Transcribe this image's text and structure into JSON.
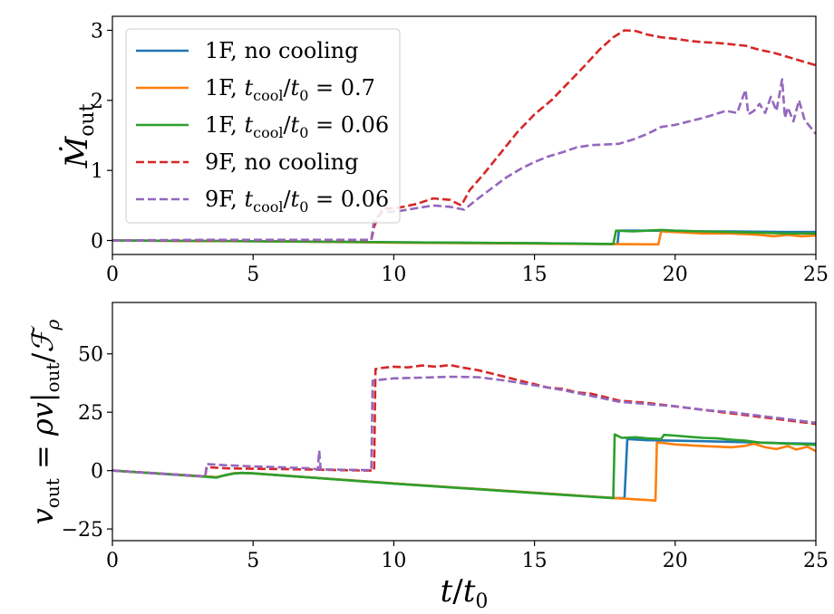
{
  "chart_data": [
    {
      "type": "line",
      "panel": "top",
      "ylabel": "Ṁ",
      "ylabel_sub": "out",
      "xlim": [
        0,
        25
      ],
      "ylim": [
        -0.2,
        3.2
      ],
      "xticks": [
        "0",
        "5",
        "10",
        "15",
        "20",
        "25"
      ],
      "xtick_values": [
        0,
        5,
        10,
        15,
        20,
        25
      ],
      "yticks": [
        "0",
        "1",
        "2",
        "3"
      ],
      "ytick_values": [
        0,
        1,
        2,
        3
      ],
      "legend": {
        "placement": "top-left",
        "entries": [
          {
            "pre": "1F, no cooling",
            "math": false
          },
          {
            "pre": "1F, ",
            "math": true,
            "value": "0.7"
          },
          {
            "pre": "1F, ",
            "math": true,
            "value": "0.06"
          },
          {
            "pre": "9F, no cooling",
            "math": false
          },
          {
            "pre": "9F, ",
            "math": true,
            "value": "0.06"
          }
        ]
      },
      "series": [
        {
          "name": "1F, no cooling",
          "color": "#1f77b4",
          "dash": false,
          "x": [
            0,
            5,
            10,
            15,
            17.8,
            17.95,
            18.0,
            19.4,
            19.5,
            20,
            22,
            24,
            25
          ],
          "y": [
            0,
            -0.01,
            -0.025,
            -0.04,
            -0.05,
            -0.05,
            0.14,
            0.14,
            0.14,
            0.13,
            0.13,
            0.12,
            0.12
          ]
        },
        {
          "name": "1F, t_cool/t0 = 0.7",
          "color": "#ff7f0e",
          "dash": false,
          "x": [
            0,
            5,
            10,
            15,
            19.3,
            19.4,
            19.5,
            20,
            21,
            22,
            23,
            23.5,
            24,
            24.5,
            25
          ],
          "y": [
            0,
            -0.01,
            -0.03,
            -0.045,
            -0.055,
            -0.055,
            0.13,
            0.12,
            0.1,
            0.1,
            0.08,
            0.06,
            0.08,
            0.06,
            0.07
          ]
        },
        {
          "name": "1F, t_cool/t0 = 0.06",
          "color": "#2ca02c",
          "dash": false,
          "x": [
            0,
            5,
            10,
            15,
            17.8,
            17.9,
            18.5,
            19.0,
            19.5,
            20,
            21,
            22,
            23,
            24,
            25
          ],
          "y": [
            0,
            -0.01,
            -0.025,
            -0.04,
            -0.05,
            0.14,
            0.13,
            0.14,
            0.15,
            0.14,
            0.13,
            0.12,
            0.11,
            0.1,
            0.1
          ]
        },
        {
          "name": "9F, no cooling",
          "color": "#d62728",
          "dash": true,
          "x": [
            0,
            3.3,
            5,
            7,
            9.2,
            9.3,
            9.6,
            10.2,
            10.8,
            11.4,
            12.0,
            12.4,
            12.7,
            13.2,
            13.8,
            14.4,
            15.0,
            15.6,
            16.2,
            16.8,
            17.3,
            17.8,
            18.2,
            18.6,
            19.0,
            19.5,
            20.0,
            20.5,
            21.0,
            21.5,
            22.0,
            22.5,
            23.0,
            23.5,
            24.0,
            24.5,
            25.0
          ],
          "y": [
            0,
            0,
            0.005,
            0.005,
            0.005,
            0.2,
            0.45,
            0.47,
            0.52,
            0.6,
            0.58,
            0.5,
            0.72,
            0.95,
            1.25,
            1.55,
            1.8,
            2.0,
            2.25,
            2.5,
            2.72,
            2.9,
            3.0,
            2.99,
            2.94,
            2.9,
            2.88,
            2.85,
            2.83,
            2.82,
            2.8,
            2.78,
            2.72,
            2.68,
            2.62,
            2.56,
            2.5
          ]
        },
        {
          "name": "9F, t_cool/t0 = 0.06",
          "color": "#9467bd",
          "dash": true,
          "x": [
            0,
            3.3,
            5,
            7,
            9.2,
            9.3,
            9.6,
            10.2,
            10.8,
            11.4,
            12.0,
            12.5,
            13.0,
            13.5,
            14.0,
            14.5,
            15.0,
            15.5,
            16.0,
            16.5,
            17.0,
            17.5,
            18.0,
            18.5,
            19.0,
            19.5,
            20.0,
            20.5,
            21.0,
            21.4,
            21.8,
            22.2,
            22.5,
            22.6,
            22.8,
            23.0,
            23.2,
            23.4,
            23.6,
            23.8,
            23.9,
            24.0,
            24.2,
            24.4,
            24.6,
            24.8,
            25.0
          ],
          "y": [
            0,
            0.01,
            0.01,
            0.01,
            0.01,
            0.3,
            0.4,
            0.42,
            0.46,
            0.5,
            0.48,
            0.44,
            0.6,
            0.75,
            0.9,
            1.02,
            1.12,
            1.2,
            1.26,
            1.33,
            1.36,
            1.37,
            1.38,
            1.44,
            1.52,
            1.62,
            1.65,
            1.7,
            1.75,
            1.8,
            1.85,
            1.82,
            2.15,
            1.8,
            1.85,
            1.95,
            1.82,
            2.05,
            1.85,
            2.3,
            1.75,
            1.9,
            1.7,
            2.0,
            1.72,
            1.62,
            1.52
          ]
        }
      ]
    },
    {
      "type": "line",
      "panel": "bottom",
      "xlabel": "t/t0",
      "ylabel": "v_out = ρv|_out/F_ρ",
      "xlim": [
        0,
        25
      ],
      "ylim": [
        -30,
        72
      ],
      "xticks": [
        "0",
        "5",
        "10",
        "15",
        "20",
        "25"
      ],
      "xtick_values": [
        0,
        5,
        10,
        15,
        20,
        25
      ],
      "yticks": [
        "−25",
        "0",
        "25",
        "50"
      ],
      "ytick_values": [
        -25,
        0,
        25,
        50
      ],
      "series": [
        {
          "name": "1F, no cooling",
          "color": "#1f77b4",
          "dash": false,
          "x": [
            0,
            3.3,
            3.7,
            4.0,
            4.3,
            4.6,
            5,
            10,
            15,
            17.9,
            18.0,
            18.2,
            18.3,
            19,
            20,
            21,
            22,
            23,
            24,
            25
          ],
          "y": [
            0,
            -2.5,
            -2.8,
            -2.0,
            -1.2,
            -1.0,
            -1.2,
            -5.5,
            -9.5,
            -11.8,
            -11.8,
            -11.8,
            13.5,
            13.0,
            12.8,
            12.6,
            12.3,
            12.0,
            11.7,
            11.5
          ]
        },
        {
          "name": "1F, t_cool/t0 = 0.7",
          "color": "#ff7f0e",
          "dash": false,
          "x": [
            0,
            3.3,
            3.7,
            4.0,
            4.3,
            4.6,
            5,
            10,
            15,
            17.9,
            19.3,
            19.35,
            19.6,
            20,
            21,
            22,
            22.5,
            22.8,
            23.2,
            23.6,
            24,
            24.3,
            24.7,
            25
          ],
          "y": [
            0,
            -2.5,
            -2.8,
            -2.0,
            -1.2,
            -1.0,
            -1.2,
            -5.5,
            -9.5,
            -11.8,
            -12.8,
            12.0,
            11.8,
            11.2,
            10.5,
            10.0,
            10.6,
            11.5,
            10.0,
            9.2,
            10.5,
            9.0,
            10.2,
            8.3
          ]
        },
        {
          "name": "1F, t_cool/t0 = 0.06",
          "color": "#2ca02c",
          "dash": false,
          "x": [
            0,
            3.3,
            3.7,
            4.0,
            4.3,
            4.6,
            5,
            10,
            15,
            17.8,
            17.85,
            18.1,
            18.6,
            19.0,
            19.5,
            19.6,
            20.0,
            20.5,
            21.0,
            21.5,
            22.0,
            22.5,
            23.0,
            23.5,
            24.0,
            24.5,
            25.0
          ],
          "y": [
            0,
            -2.6,
            -3.0,
            -2.0,
            -1.3,
            -1.0,
            -1.2,
            -5.6,
            -9.6,
            -11.8,
            15.5,
            14.0,
            14.3,
            13.8,
            13.5,
            15.3,
            15.0,
            14.5,
            14.0,
            13.8,
            13.2,
            12.8,
            12.0,
            11.8,
            11.5,
            11.3,
            11.0
          ]
        },
        {
          "name": "9F, no cooling",
          "color": "#d62728",
          "dash": true,
          "x": [
            0,
            3.3,
            3.35,
            4.0,
            5,
            7,
            8,
            9.0,
            9.3,
            9.35,
            9.6,
            10.0,
            10.5,
            11.0,
            11.5,
            12.0,
            12.5,
            13.0,
            13.5,
            14.0,
            14.5,
            15.0,
            15.5,
            16.0,
            16.5,
            17.0,
            17.5,
            18.0,
            18.5,
            19.0,
            20.0,
            21.0,
            22.0,
            23.0,
            24.0,
            25.0
          ],
          "y": [
            0,
            -2.5,
            1.5,
            1.0,
            0.8,
            0.5,
            0.2,
            0.0,
            0.0,
            43.5,
            44.0,
            44.5,
            44.2,
            45.0,
            44.5,
            45.2,
            44.0,
            43.0,
            41.5,
            40.0,
            38.5,
            37.0,
            35.5,
            35.0,
            33.5,
            33.0,
            31.5,
            30.0,
            29.5,
            29.0,
            27.5,
            26.0,
            24.5,
            23.0,
            21.5,
            20.0
          ]
        },
        {
          "name": "9F, t_cool/t0 = 0.06",
          "color": "#9467bd",
          "dash": true,
          "x": [
            0,
            3.3,
            3.35,
            4.0,
            5,
            7,
            7.3,
            7.35,
            7.4,
            8,
            9.0,
            9.2,
            9.25,
            9.6,
            10,
            11,
            12,
            13,
            14,
            15,
            16,
            17,
            18,
            19,
            20,
            21,
            22,
            23,
            24,
            25
          ],
          "y": [
            0,
            -2.5,
            2.8,
            2.3,
            1.8,
            1.0,
            0.5,
            8.5,
            0.5,
            0.4,
            0.2,
            0.2,
            38.5,
            39.0,
            39.5,
            39.8,
            40.2,
            40.0,
            38.5,
            36.5,
            34.5,
            32.0,
            29.5,
            28.5,
            27.5,
            26.0,
            25.0,
            23.5,
            22.0,
            20.5
          ]
        }
      ]
    }
  ]
}
